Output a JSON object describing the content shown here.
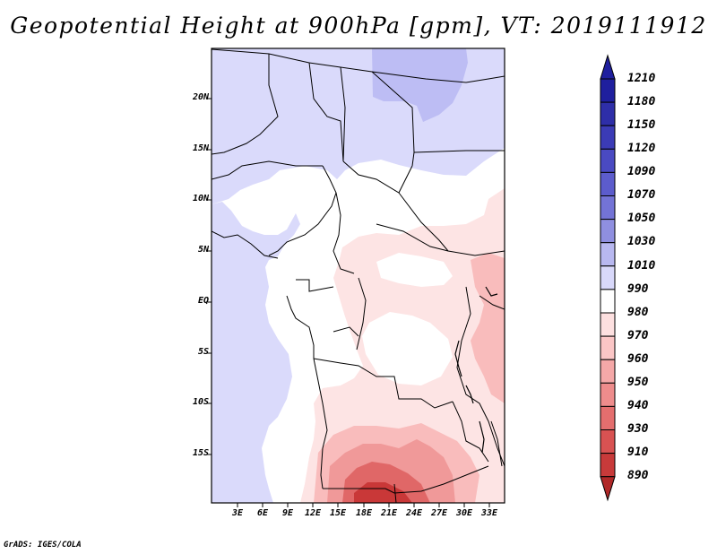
{
  "title": "Geopotential Height at 900hPa [gpm], VT: 2019111912",
  "footer": "GrADS: IGES/COLA",
  "map": {
    "lat_labels": [
      "20N",
      "15N",
      "10N",
      "5N",
      "EQ",
      "5S",
      "10S",
      "15S"
    ],
    "lon_labels": [
      "3E",
      "6E",
      "9E",
      "12E",
      "15E",
      "18E",
      "21E",
      "24E",
      "27E",
      "30E",
      "33E"
    ]
  },
  "colorbar": {
    "labels": [
      "1210",
      "1180",
      "1150",
      "1120",
      "1090",
      "1070",
      "1050",
      "1030",
      "1010",
      "990",
      "980",
      "970",
      "960",
      "950",
      "940",
      "930",
      "910",
      "890"
    ],
    "colors": [
      "#1f1f9e",
      "#2e2ea8",
      "#3b3bb6",
      "#4a4ac2",
      "#5c5ccc",
      "#7373d6",
      "#8f8fe0",
      "#b8b8f0",
      "#d8d8fa",
      "#ffffff",
      "#fde0e0",
      "#fbc6c6",
      "#f5a8a8",
      "#ee8c8c",
      "#e46e6e",
      "#d85252",
      "#c83a3a",
      "#b02828"
    ]
  }
}
